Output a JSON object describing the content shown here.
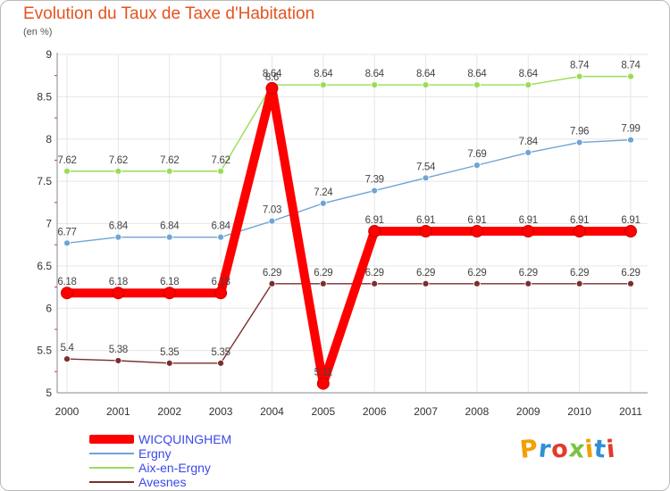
{
  "chart_data": {
    "type": "line",
    "title": "Evolution du Taux de Taxe d'Habitation",
    "subtitle": "(en %)",
    "x": [
      "2000",
      "2001",
      "2002",
      "2003",
      "2004",
      "2005",
      "2006",
      "2007",
      "2008",
      "2009",
      "2010",
      "2011"
    ],
    "ylim": [
      5,
      9
    ],
    "yticks": [
      "5",
      "5.5",
      "6",
      "6.5",
      "7",
      "7.5",
      "8",
      "8.5",
      "9"
    ],
    "grid": true,
    "legend_position": "bottom-left",
    "series": [
      {
        "name": "Aix-en-Ergny",
        "color": "#99dd55",
        "values": [
          7.62,
          7.62,
          7.62,
          7.62,
          8.64,
          8.64,
          8.64,
          8.64,
          8.64,
          8.64,
          8.74,
          8.74
        ],
        "labels": [
          "7.62",
          "7.62",
          "7.62",
          "7.62",
          "8.64",
          "8.64",
          "8.64",
          "8.64",
          "8.64",
          "8.64",
          "8.74",
          "8.74"
        ]
      },
      {
        "name": "Ergny",
        "color": "#6fa4d6",
        "values": [
          6.77,
          6.84,
          6.84,
          6.84,
          7.03,
          7.24,
          7.39,
          7.54,
          7.69,
          7.84,
          7.96,
          7.99
        ],
        "labels": [
          "6.77",
          "6.84",
          "6.84",
          "6.84",
          "7.03",
          "7.24",
          "7.39",
          "7.54",
          "7.69",
          "7.84",
          "7.96",
          "7.99"
        ]
      },
      {
        "name": "Avesnes",
        "color": "#7a2e2e",
        "values": [
          5.4,
          5.38,
          5.35,
          5.35,
          6.29,
          6.29,
          6.29,
          6.29,
          6.29,
          6.29,
          6.29,
          6.29
        ],
        "labels": [
          "5.4",
          "5.38",
          "5.35",
          "5.35",
          "6.29",
          "6.29",
          "6.29",
          "6.29",
          "6.29",
          "6.29",
          "6.29",
          "6.29"
        ]
      },
      {
        "name": "WICQUINGHEM",
        "color": "#ff0000",
        "values": [
          6.18,
          6.18,
          6.18,
          6.18,
          8.6,
          5.11,
          6.91,
          6.91,
          6.91,
          6.91,
          6.91,
          6.91
        ],
        "labels": [
          "6.18",
          "6.18",
          "6.18",
          "6.18",
          "8.6",
          "5.11",
          "6.91",
          "6.91",
          "6.91",
          "6.91",
          "6.91",
          "6.91"
        ]
      }
    ],
    "legend_order": [
      3,
      1,
      0,
      2
    ]
  },
  "legend_text_color": "#3b48e8",
  "logo": {
    "letters": [
      "P",
      "r",
      "o",
      "x",
      "i",
      "t",
      "i"
    ],
    "colors": [
      "#f2a000",
      "#2f8fd8",
      "#e23c2a",
      "#7cc242",
      "#f2a000",
      "#2f8fd8",
      "#e23c2a"
    ]
  }
}
